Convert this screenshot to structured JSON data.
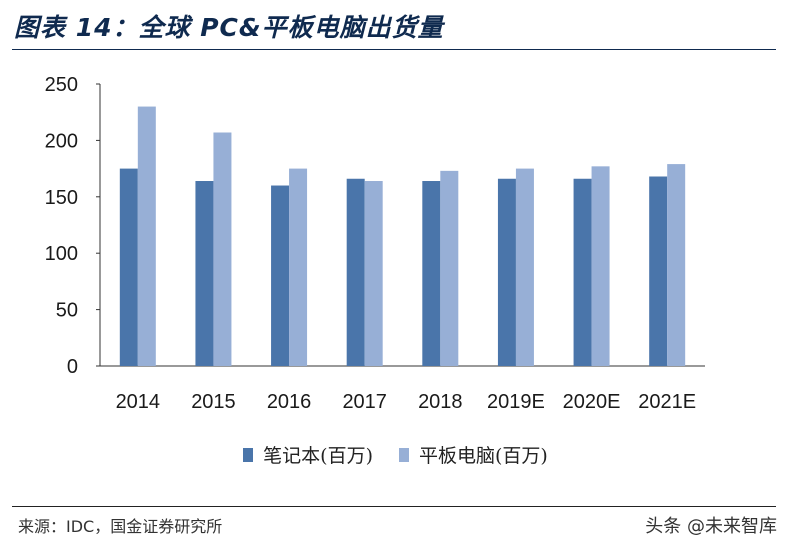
{
  "header": {
    "title": "图表 14：全球 PC&平板电脑出货量"
  },
  "footer": {
    "source": "来源：IDC，国金证券研究所",
    "watermark": "头条 @未来智库"
  },
  "colors": {
    "series_1": "#4a75aa",
    "series_2": "#97afd6",
    "title": "#0f2a4f"
  },
  "chart_data": {
    "type": "bar",
    "categories": [
      "2014",
      "2015",
      "2016",
      "2017",
      "2018",
      "2019E",
      "2020E",
      "2021E"
    ],
    "series": [
      {
        "name": "笔记本(百万)",
        "values": [
          175,
          164,
          160,
          166,
          164,
          166,
          166,
          168
        ]
      },
      {
        "name": "平板电脑(百万)",
        "values": [
          230,
          207,
          175,
          164,
          173,
          175,
          177,
          179
        ]
      }
    ],
    "title": "",
    "xlabel": "",
    "ylabel": "",
    "ylim": [
      0,
      250
    ],
    "yticks": [
      0,
      50,
      100,
      150,
      200,
      250
    ],
    "grid": false,
    "legend_position": "bottom"
  }
}
